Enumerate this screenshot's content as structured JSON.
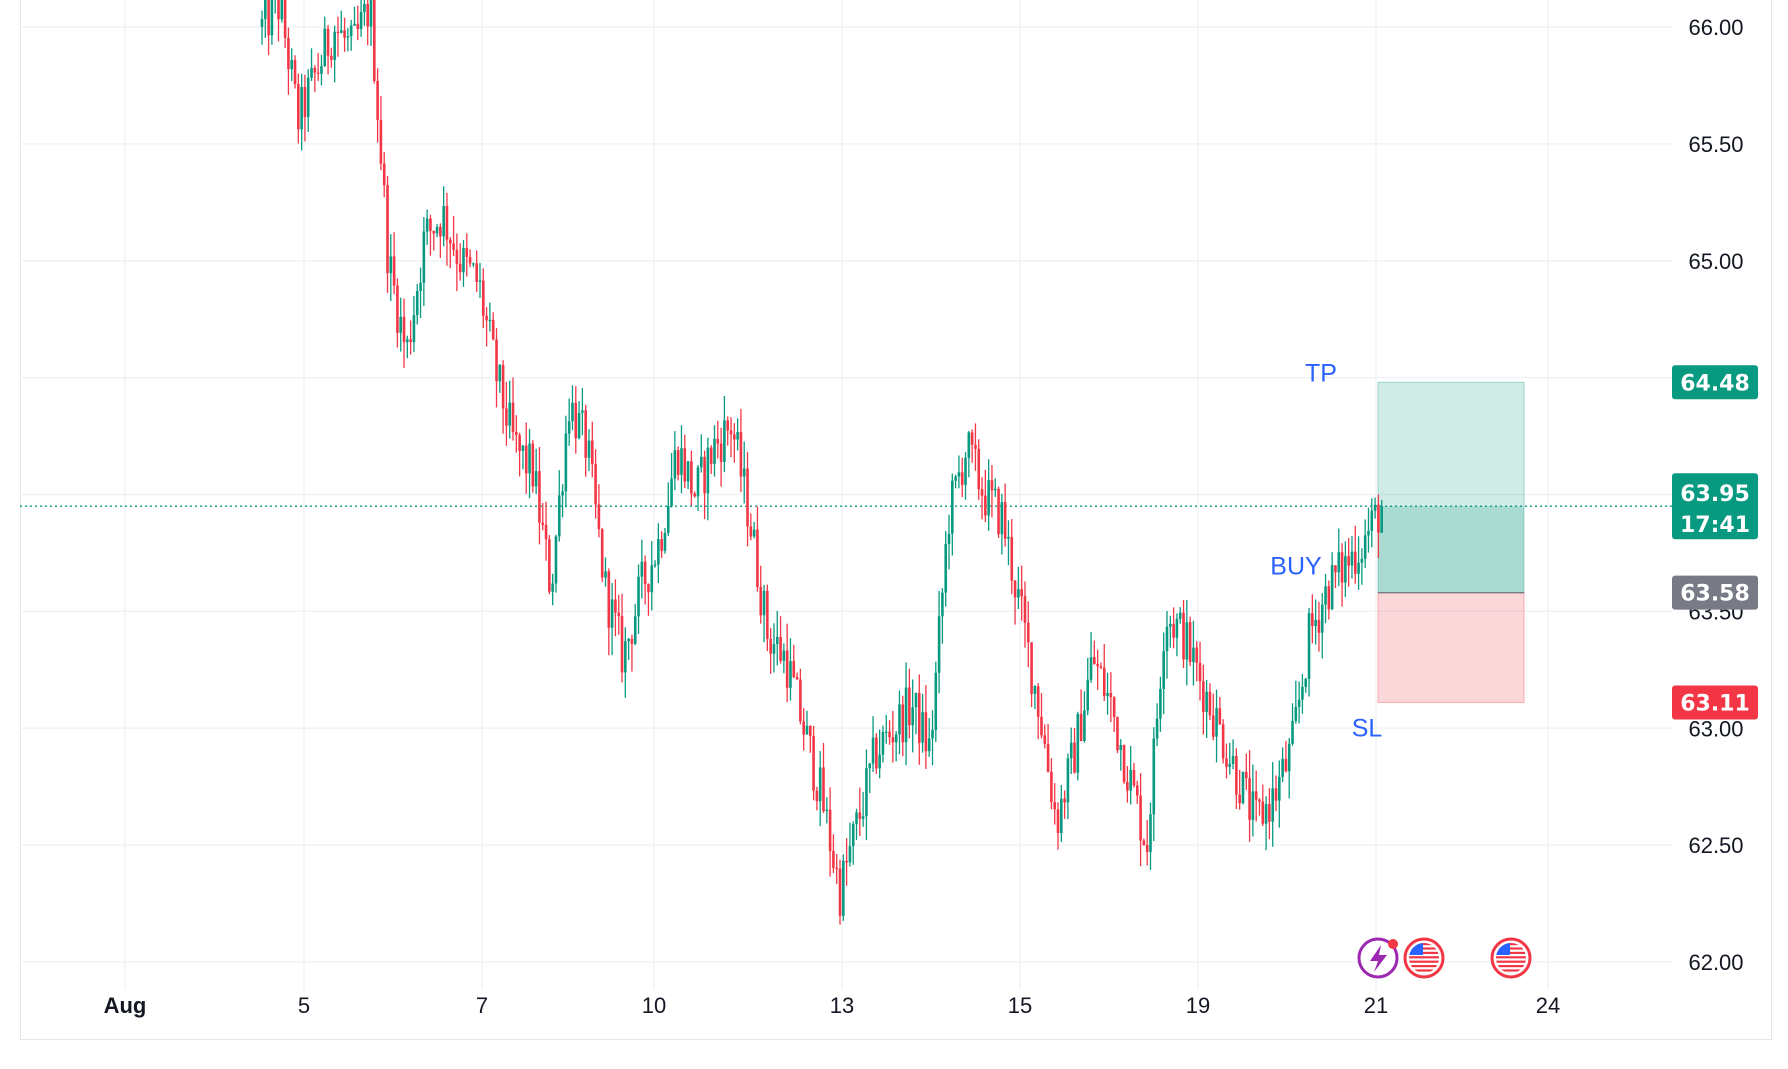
{
  "chart_data": {
    "type": "candlestick",
    "y_axis": {
      "ticks": [
        "66.00",
        "65.50",
        "65.00",
        "63.50",
        "63.00",
        "62.50",
        "62.00"
      ],
      "tick_values": [
        66.0,
        65.5,
        65.0,
        63.5,
        63.0,
        62.5,
        62.0
      ],
      "ylim": [
        61.99,
        66.09
      ]
    },
    "x_axis": {
      "ticks": [
        "Aug",
        "5",
        "7",
        "10",
        "13",
        "15",
        "19",
        "21",
        "24"
      ]
    },
    "current_price": 63.95,
    "countdown": "17:41",
    "colors": {
      "up": "#089981",
      "down": "#f23645",
      "tp": "#089981",
      "entry": "#787b86",
      "sl": "#f23645",
      "annotation": "#2962ff"
    },
    "position": {
      "side": "long",
      "take_profit": 64.48,
      "entry": 63.58,
      "stop_loss": 63.11,
      "labels": {
        "tp": "TP",
        "entry": "BUY",
        "sl": "SL"
      },
      "price_tags": {
        "tp": "64.48",
        "entry": "63.58",
        "sl": "63.11",
        "current": "63.95"
      }
    },
    "price_path_approx": [
      66.0,
      66.1,
      65.6,
      65.8,
      66.0,
      65.9,
      66.1,
      65.0,
      64.6,
      65.1,
      65.2,
      65.0,
      64.9,
      64.5,
      64.2,
      64.1,
      63.6,
      64.4,
      64.2,
      63.6,
      63.3,
      63.6,
      63.8,
      64.2,
      64.0,
      64.2,
      64.3,
      63.9,
      63.4,
      63.3,
      63.0,
      62.7,
      62.3,
      62.6,
      62.9,
      63.0,
      63.1,
      62.9,
      63.9,
      64.2,
      64.0,
      63.9,
      63.5,
      63.1,
      62.6,
      62.9,
      63.3,
      63.1,
      62.8,
      62.5,
      63.5,
      63.4,
      63.2,
      63.0,
      62.8,
      62.6,
      62.7,
      62.9,
      63.4,
      63.6,
      63.7,
      63.8,
      63.95
    ],
    "grid": true,
    "event_icons": [
      "lightning-event-icon",
      "us-flag-event-icon",
      "us-flag-event-icon"
    ]
  }
}
